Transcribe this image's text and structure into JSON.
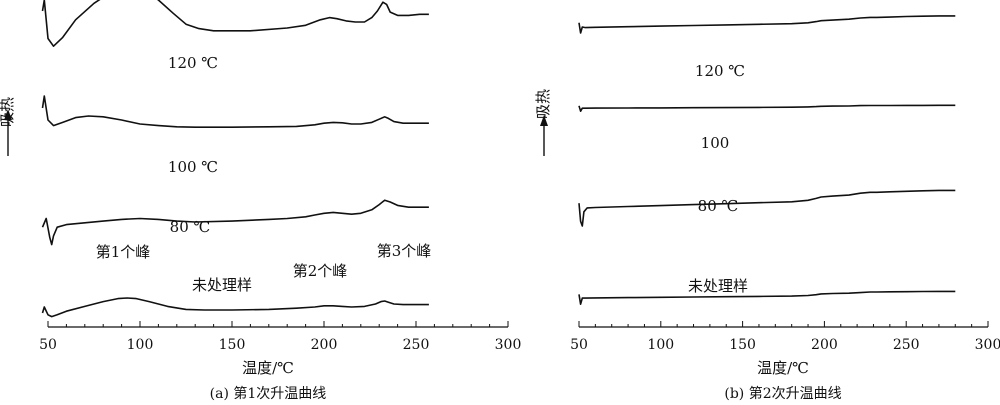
{
  "chart_data": [
    {
      "type": "line",
      "caption": "(a) 第1次升温曲线",
      "xlabel": "温度/℃",
      "ylabel": "吸热",
      "xlim": [
        50,
        300
      ],
      "xticks": [
        50,
        100,
        150,
        200,
        250,
        300
      ],
      "series": [
        {
          "name": "120 ℃",
          "x": [
            47,
            48,
            50,
            53,
            58,
            65,
            75,
            85,
            93,
            100,
            110,
            118,
            125,
            132,
            140,
            160,
            180,
            190,
            198,
            203,
            207,
            212,
            217,
            222,
            226,
            229,
            232,
            234,
            236,
            240,
            246,
            252,
            257
          ],
          "y": [
            0.9,
            1.0,
            0.65,
            0.58,
            0.66,
            0.82,
            0.97,
            1.08,
            1.13,
            1.11,
            1.0,
            0.88,
            0.78,
            0.74,
            0.72,
            0.72,
            0.745,
            0.77,
            0.82,
            0.84,
            0.83,
            0.81,
            0.8,
            0.8,
            0.84,
            0.9,
            0.98,
            0.96,
            0.89,
            0.86,
            0.86,
            0.87,
            0.87
          ]
        },
        {
          "name": "100 ℃",
          "x": [
            47,
            48,
            50,
            53,
            58,
            65,
            72,
            80,
            90,
            100,
            110,
            120,
            130,
            150,
            170,
            185,
            195,
            200,
            205,
            210,
            215,
            220,
            226,
            230,
            233,
            235,
            238,
            243,
            250,
            257
          ],
          "y": [
            0.9,
            1.05,
            0.75,
            0.68,
            0.72,
            0.78,
            0.8,
            0.79,
            0.75,
            0.7,
            0.68,
            0.665,
            0.66,
            0.66,
            0.665,
            0.67,
            0.69,
            0.71,
            0.72,
            0.715,
            0.7,
            0.7,
            0.72,
            0.76,
            0.79,
            0.77,
            0.73,
            0.71,
            0.71,
            0.71
          ]
        },
        {
          "name": "80 ℃",
          "x": [
            47,
            49,
            51,
            52,
            53,
            55,
            60,
            70,
            80,
            90,
            100,
            110,
            120,
            130,
            150,
            170,
            180,
            190,
            195,
            200,
            205,
            210,
            215,
            220,
            226,
            230,
            233,
            236,
            240,
            246,
            250,
            257
          ],
          "y": [
            0.4,
            0.5,
            0.28,
            0.2,
            0.3,
            0.4,
            0.43,
            0.45,
            0.47,
            0.49,
            0.5,
            0.49,
            0.47,
            0.46,
            0.47,
            0.49,
            0.5,
            0.52,
            0.54,
            0.56,
            0.57,
            0.56,
            0.55,
            0.56,
            0.6,
            0.66,
            0.71,
            0.69,
            0.65,
            0.63,
            0.63,
            0.63
          ]
        },
        {
          "name": "未处理样",
          "x": [
            47,
            48,
            50,
            52,
            55,
            60,
            70,
            80,
            88,
            93,
            98,
            105,
            115,
            125,
            135,
            150,
            170,
            185,
            195,
            200,
            205,
            210,
            215,
            222,
            228,
            231,
            233,
            235,
            238,
            243,
            250,
            257
          ],
          "y": [
            0.15,
            0.25,
            0.12,
            0.09,
            0.12,
            0.18,
            0.26,
            0.34,
            0.39,
            0.4,
            0.39,
            0.34,
            0.26,
            0.21,
            0.2,
            0.2,
            0.21,
            0.23,
            0.25,
            0.27,
            0.27,
            0.26,
            0.25,
            0.26,
            0.3,
            0.34,
            0.35,
            0.33,
            0.3,
            0.29,
            0.29,
            0.29
          ]
        }
      ],
      "annotations": [
        "第1个峰",
        "第2个峰",
        "第3个峰"
      ]
    },
    {
      "type": "line",
      "caption": "(b) 第2次升温曲线",
      "xlabel": "温度/℃",
      "ylabel": "吸热",
      "xlim": [
        50,
        300
      ],
      "xticks": [
        50,
        100,
        150,
        200,
        250,
        300
      ],
      "series": [
        {
          "name": "120 ℃",
          "x": [
            50,
            51,
            52,
            54,
            60,
            80,
            100,
            120,
            140,
            160,
            180,
            190,
            195,
            198,
            205,
            215,
            222,
            228,
            232,
            240,
            250,
            260,
            270,
            280
          ],
          "y": [
            0.82,
            0.65,
            0.75,
            0.74,
            0.745,
            0.755,
            0.765,
            0.775,
            0.785,
            0.795,
            0.805,
            0.82,
            0.84,
            0.855,
            0.865,
            0.88,
            0.9,
            0.91,
            0.91,
            0.915,
            0.925,
            0.93,
            0.935,
            0.935
          ]
        },
        {
          "name": "100",
          "x": [
            50,
            51,
            52,
            54,
            60,
            80,
            100,
            120,
            140,
            160,
            180,
            190,
            195,
            198,
            205,
            215,
            222,
            228,
            232,
            240,
            250,
            260,
            270,
            280
          ],
          "y": [
            0.6,
            0.43,
            0.525,
            0.525,
            0.527,
            0.53,
            0.535,
            0.54,
            0.545,
            0.55,
            0.555,
            0.565,
            0.575,
            0.585,
            0.59,
            0.595,
            0.605,
            0.61,
            0.61,
            0.61,
            0.612,
            0.614,
            0.615,
            0.615
          ]
        },
        {
          "name": "80 ℃",
          "x": [
            50,
            51,
            52,
            53,
            55,
            60,
            80,
            100,
            120,
            140,
            160,
            180,
            190,
            195,
            198,
            205,
            215,
            222,
            228,
            232,
            240,
            250,
            260,
            270,
            280
          ],
          "y": [
            0.44,
            0.25,
            0.2,
            0.35,
            0.39,
            0.395,
            0.405,
            0.415,
            0.425,
            0.435,
            0.445,
            0.455,
            0.47,
            0.49,
            0.505,
            0.515,
            0.525,
            0.545,
            0.555,
            0.555,
            0.56,
            0.565,
            0.57,
            0.575,
            0.575
          ]
        },
        {
          "name": "未处理样",
          "x": [
            50,
            51,
            52,
            54,
            60,
            80,
            100,
            120,
            140,
            160,
            180,
            190,
            195,
            198,
            205,
            215,
            222,
            228,
            232,
            240,
            250,
            260,
            270,
            280
          ],
          "y": [
            0.19,
            0.03,
            0.13,
            0.13,
            0.132,
            0.137,
            0.142,
            0.147,
            0.152,
            0.157,
            0.162,
            0.172,
            0.185,
            0.198,
            0.205,
            0.21,
            0.22,
            0.23,
            0.23,
            0.232,
            0.235,
            0.238,
            0.24,
            0.24
          ]
        }
      ],
      "annotations": []
    }
  ]
}
